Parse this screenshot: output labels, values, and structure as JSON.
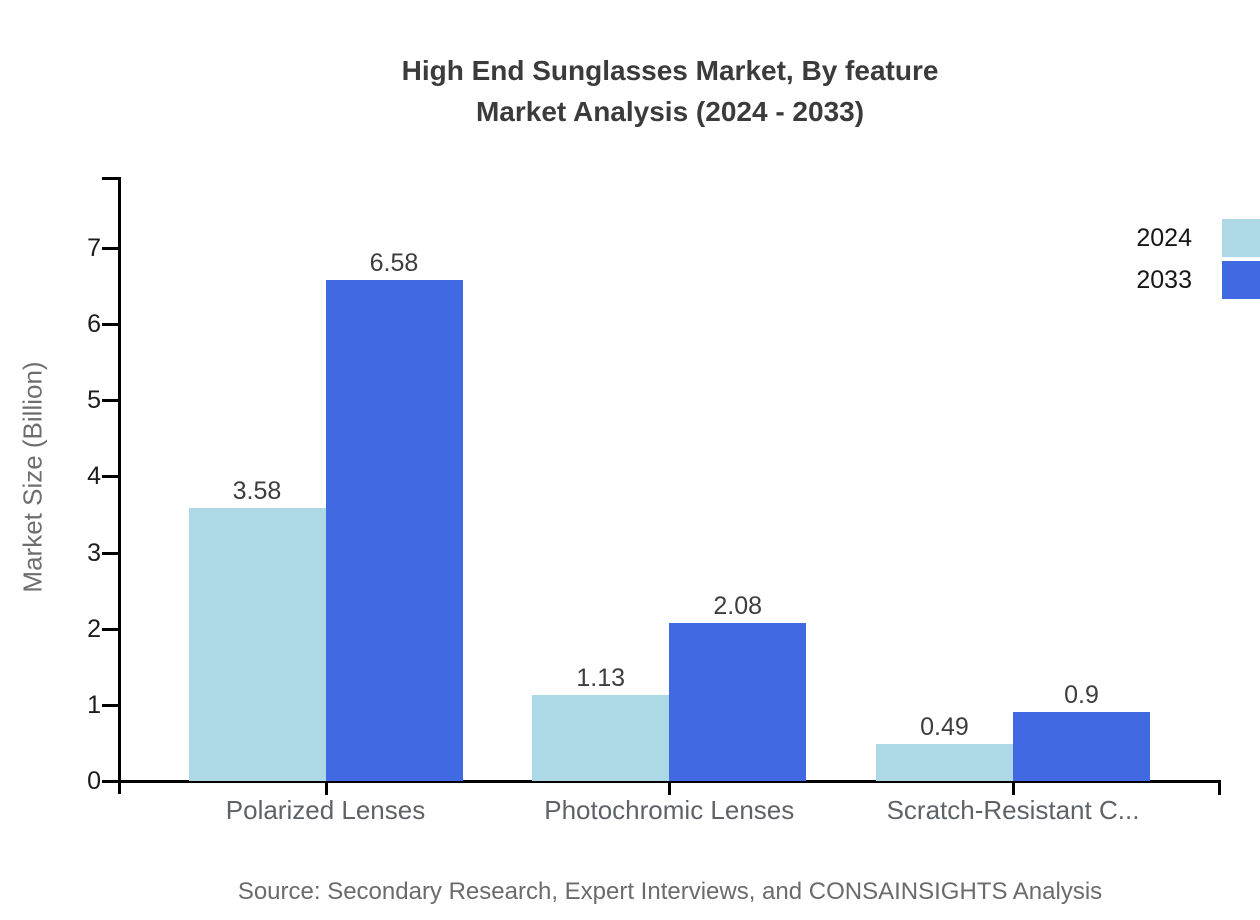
{
  "title": {
    "line1": "High End Sunglasses Market, By feature",
    "line2": "Market Analysis (2024 - 2033)"
  },
  "source_note": "Source: Secondary Research, Expert Interviews, and CONSAINSIGHTS Analysis",
  "colors": {
    "series_2024": "#ADD8E6",
    "series_2033": "#4169E1",
    "axis": "#000000",
    "title_text": "#3b3b3b",
    "value_label_text": "#3d3d3d",
    "category_text": "#5f6368",
    "source_text": "#6b6b6b"
  },
  "chart_data": {
    "type": "bar",
    "title": "High End Sunglasses Market, By feature Market Analysis (2024 - 2033)",
    "categories": [
      "Polarized Lenses",
      "Photochromic Lenses",
      "Scratch-Resistant C..."
    ],
    "series": [
      {
        "name": "2024",
        "color": "#ADD8E6",
        "values": [
          3.58,
          1.13,
          0.49
        ]
      },
      {
        "name": "2033",
        "color": "#4169E1",
        "values": [
          6.58,
          2.08,
          0.9
        ]
      }
    ],
    "xlabel": "",
    "ylabel": "Market Size (Billion)",
    "ylim": [
      0,
      7.9
    ],
    "yticks": [
      0,
      1,
      2,
      3,
      4,
      5,
      6,
      7
    ],
    "grid": false,
    "legend_position": "top-right",
    "value_labels_shown": true
  }
}
